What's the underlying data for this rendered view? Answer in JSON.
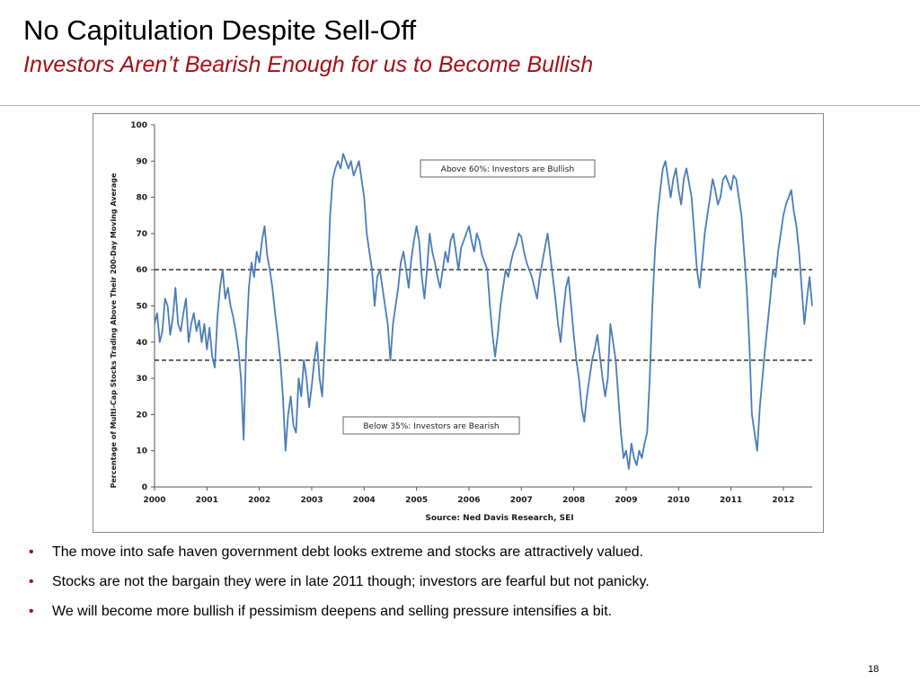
{
  "slide": {
    "title": "No Capitulation Despite Sell-Off",
    "subtitle": "Investors Aren’t Bearish Enough for us to Become Bullish",
    "bullets": [
      "The move into safe haven government debt looks extreme and stocks are attractively valued.",
      "Stocks are not the bargain they were in late 2011 though; investors are fearful but not panicky.",
      "We will become more bullish if pessimism deepens and selling pressure intensifies a bit."
    ],
    "page_number": "18",
    "accent_color": "#a50f15"
  },
  "chart_data": {
    "type": "line",
    "ylabel": "Percentage of Multi-Cap Stocks Trading Above Their 200-Day Moving Average",
    "source": "Source: Ned Davis Research, SEI",
    "ylim": [
      0,
      100
    ],
    "xlim": [
      2000.0,
      2012.55
    ],
    "yticks": [
      "0",
      "10",
      "20",
      "30",
      "40",
      "50",
      "60",
      "70",
      "80",
      "90",
      "100"
    ],
    "xticks": [
      "2000",
      "2001",
      "2002",
      "2003",
      "2004",
      "2005",
      "2006",
      "2007",
      "2008",
      "2009",
      "2010",
      "2011",
      "2012"
    ],
    "grid": false,
    "line_color": "#4a7db8",
    "reference_lines": [
      {
        "y": 60,
        "style": "dashed"
      },
      {
        "y": 35,
        "style": "dashed"
      }
    ],
    "annotations": [
      {
        "text": "Above 60%:  Investors are Bullish"
      },
      {
        "text": "Below 35%:  Investors are Bearish"
      }
    ],
    "series": [
      {
        "x": [
          2000.0,
          2000.05,
          2000.1,
          2000.15,
          2000.2,
          2000.25,
          2000.3,
          2000.35,
          2000.4,
          2000.45,
          2000.5,
          2000.55,
          2000.6,
          2000.65,
          2000.7,
          2000.75,
          2000.8,
          2000.85,
          2000.9,
          2000.95,
          2001.0,
          2001.05,
          2001.1,
          2001.15,
          2001.2,
          2001.25,
          2001.3,
          2001.35,
          2001.4,
          2001.45,
          2001.5,
          2001.55,
          2001.6,
          2001.65,
          2001.7,
          2001.75,
          2001.8,
          2001.85,
          2001.9,
          2001.95,
          2002.0,
          2002.05,
          2002.1,
          2002.15,
          2002.2,
          2002.25,
          2002.3,
          2002.35,
          2002.4,
          2002.45,
          2002.5,
          2002.55,
          2002.6,
          2002.65,
          2002.7,
          2002.75,
          2002.8,
          2002.85,
          2002.9,
          2002.95,
          2003.0,
          2003.05,
          2003.1,
          2003.15,
          2003.2,
          2003.25,
          2003.3,
          2003.35,
          2003.4,
          2003.45,
          2003.5,
          2003.55,
          2003.6,
          2003.65,
          2003.7,
          2003.75,
          2003.8,
          2003.85,
          2003.9,
          2003.95,
          2004.0,
          2004.05,
          2004.1,
          2004.15,
          2004.2,
          2004.25,
          2004.3,
          2004.35,
          2004.4,
          2004.45,
          2004.5,
          2004.55,
          2004.6,
          2004.65,
          2004.7,
          2004.75,
          2004.8,
          2004.85,
          2004.9,
          2004.95,
          2005.0,
          2005.05,
          2005.1,
          2005.15,
          2005.2,
          2005.25,
          2005.3,
          2005.35,
          2005.4,
          2005.45,
          2005.5,
          2005.55,
          2005.6,
          2005.65,
          2005.7,
          2005.75,
          2005.8,
          2005.85,
          2005.9,
          2005.95,
          2006.0,
          2006.05,
          2006.1,
          2006.15,
          2006.2,
          2006.25,
          2006.3,
          2006.35,
          2006.4,
          2006.45,
          2006.5,
          2006.55,
          2006.6,
          2006.65,
          2006.7,
          2006.75,
          2006.8,
          2006.85,
          2006.9,
          2006.95,
          2007.0,
          2007.05,
          2007.1,
          2007.15,
          2007.2,
          2007.25,
          2007.3,
          2007.35,
          2007.4,
          2007.45,
          2007.5,
          2007.55,
          2007.6,
          2007.65,
          2007.7,
          2007.75,
          2007.8,
          2007.85,
          2007.9,
          2007.95,
          2008.0,
          2008.05,
          2008.1,
          2008.15,
          2008.2,
          2008.25,
          2008.3,
          2008.35,
          2008.4,
          2008.45,
          2008.5,
          2008.55,
          2008.6,
          2008.65,
          2008.7,
          2008.75,
          2008.8,
          2008.85,
          2008.9,
          2008.95,
          2009.0,
          2009.05,
          2009.1,
          2009.15,
          2009.2,
          2009.25,
          2009.3,
          2009.35,
          2009.4,
          2009.45,
          2009.5,
          2009.55,
          2009.6,
          2009.65,
          2009.7,
          2009.75,
          2009.8,
          2009.85,
          2009.9,
          2009.95,
          2010.0,
          2010.05,
          2010.1,
          2010.15,
          2010.2,
          2010.25,
          2010.3,
          2010.35,
          2010.4,
          2010.45,
          2010.5,
          2010.55,
          2010.6,
          2010.65,
          2010.7,
          2010.75,
          2010.8,
          2010.85,
          2010.9,
          2010.95,
          2011.0,
          2011.05,
          2011.1,
          2011.15,
          2011.2,
          2011.25,
          2011.3,
          2011.35,
          2011.4,
          2011.45,
          2011.5,
          2011.55,
          2011.6,
          2011.65,
          2011.7,
          2011.75,
          2011.8,
          2011.85,
          2011.9,
          2011.95,
          2012.0,
          2012.05,
          2012.1,
          2012.15,
          2012.2,
          2012.25,
          2012.3,
          2012.35,
          2012.4,
          2012.45,
          2012.5,
          2012.55
        ],
        "values": [
          45,
          48,
          40,
          43,
          52,
          50,
          42,
          47,
          55,
          45,
          43,
          48,
          52,
          40,
          45,
          48,
          43,
          46,
          40,
          45,
          38,
          44,
          36,
          33,
          47,
          55,
          60,
          52,
          55,
          50,
          47,
          43,
          38,
          30,
          13,
          40,
          55,
          62,
          58,
          65,
          62,
          68,
          72,
          64,
          60,
          55,
          48,
          42,
          35,
          25,
          10,
          20,
          25,
          17,
          15,
          30,
          25,
          35,
          30,
          22,
          28,
          35,
          40,
          30,
          25,
          40,
          55,
          75,
          85,
          88,
          90,
          88,
          92,
          90,
          88,
          90,
          86,
          88,
          90,
          85,
          80,
          70,
          65,
          60,
          50,
          58,
          60,
          55,
          50,
          45,
          35,
          45,
          50,
          55,
          62,
          65,
          60,
          55,
          63,
          68,
          72,
          68,
          58,
          52,
          60,
          70,
          65,
          62,
          58,
          55,
          60,
          65,
          62,
          68,
          70,
          65,
          60,
          66,
          68,
          70,
          72,
          68,
          65,
          70,
          68,
          64,
          62,
          60,
          50,
          42,
          36,
          42,
          50,
          55,
          60,
          58,
          62,
          65,
          67,
          70,
          69,
          65,
          62,
          60,
          58,
          55,
          52,
          58,
          62,
          66,
          70,
          64,
          58,
          52,
          45,
          40,
          48,
          55,
          58,
          50,
          42,
          35,
          30,
          22,
          18,
          25,
          30,
          35,
          38,
          42,
          36,
          30,
          25,
          30,
          45,
          40,
          35,
          25,
          15,
          8,
          10,
          5,
          12,
          8,
          6,
          10,
          8,
          12,
          15,
          30,
          50,
          65,
          75,
          82,
          88,
          90,
          85,
          80,
          85,
          88,
          82,
          78,
          85,
          88,
          84,
          80,
          70,
          60,
          55,
          62,
          70,
          75,
          80,
          85,
          82,
          78,
          80,
          85,
          86,
          84,
          82,
          86,
          85,
          80,
          75,
          65,
          55,
          40,
          20,
          15,
          10,
          22,
          30,
          38,
          45,
          52,
          60,
          58,
          65,
          70,
          75,
          78,
          80,
          82,
          76,
          72,
          65,
          55,
          45,
          52,
          58,
          50
        ]
      }
    ]
  }
}
